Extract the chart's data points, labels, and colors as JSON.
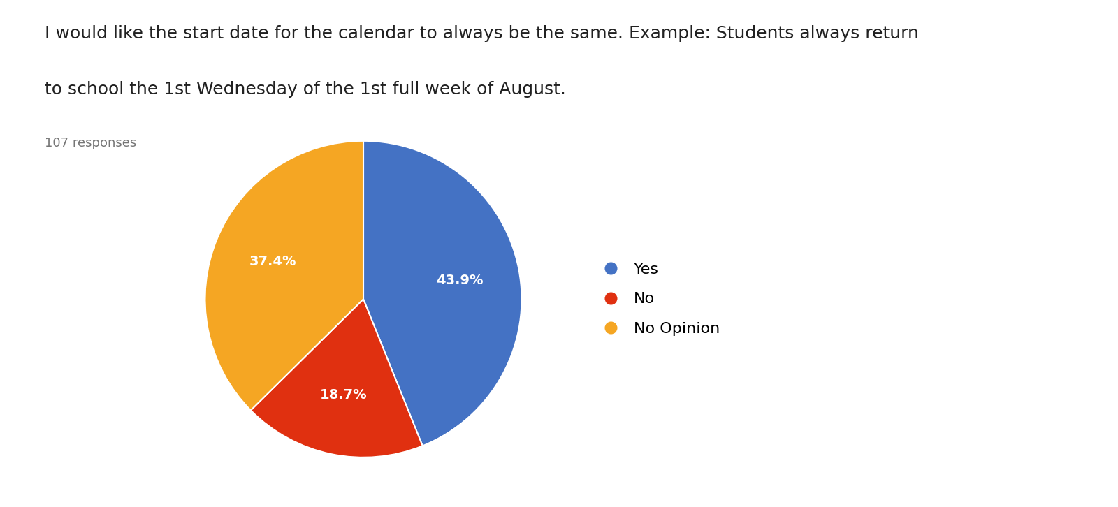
{
  "title_line1": "I would like the start date for the calendar to always be the same. Example: Students always return",
  "title_line2": "to school the 1st Wednesday of the 1st full week of August.",
  "responses_label": "107 responses",
  "labels": [
    "Yes",
    "No",
    "No Opinion"
  ],
  "values": [
    43.9,
    18.7,
    37.4
  ],
  "colors": [
    "#4472c4",
    "#e03010",
    "#f5a623"
  ],
  "background_color": "#ffffff",
  "title_fontsize": 18,
  "responses_fontsize": 13,
  "legend_fontsize": 16,
  "label_fontsize": 14,
  "startangle": 90
}
